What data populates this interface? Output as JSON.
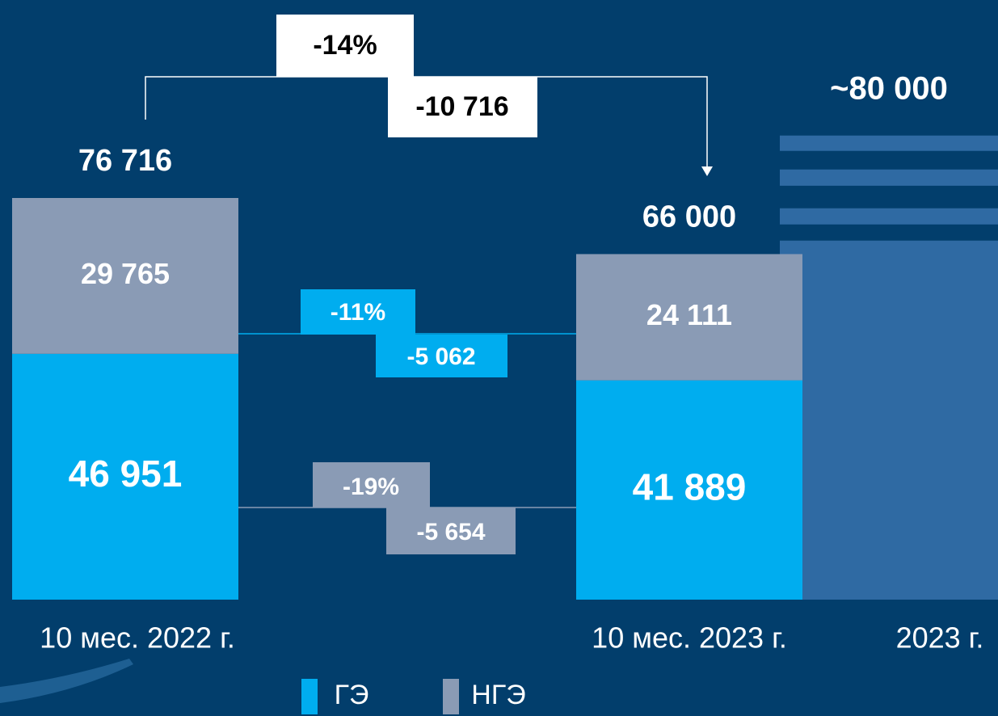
{
  "chart_data": {
    "type": "bar",
    "stacked": true,
    "categories": [
      "10 мес. 2022 г.",
      "10 мес. 2023 г.",
      "2023 г."
    ],
    "series": [
      {
        "name": "ГЭ",
        "color": "#00adef",
        "values": [
          46951,
          41889,
          null
        ],
        "value_labels": [
          "46 951",
          "41 889",
          null
        ]
      },
      {
        "name": "НГЭ",
        "color": "#8a9bb5",
        "values": [
          29765,
          24111,
          null
        ],
        "value_labels": [
          "29 765",
          "24 111",
          null
        ]
      }
    ],
    "totals": {
      "values": [
        76716,
        66000,
        80000
      ],
      "value_labels": [
        "76 716",
        "66 000",
        "~80 000"
      ],
      "forecast_color": "#2f6aa3"
    },
    "annotations": {
      "total": [
        "-14%",
        "-10 716"
      ],
      "series": [
        [
          "-11%",
          "-5 062"
        ],
        [
          "-19%",
          "-5 654"
        ]
      ]
    }
  }
}
